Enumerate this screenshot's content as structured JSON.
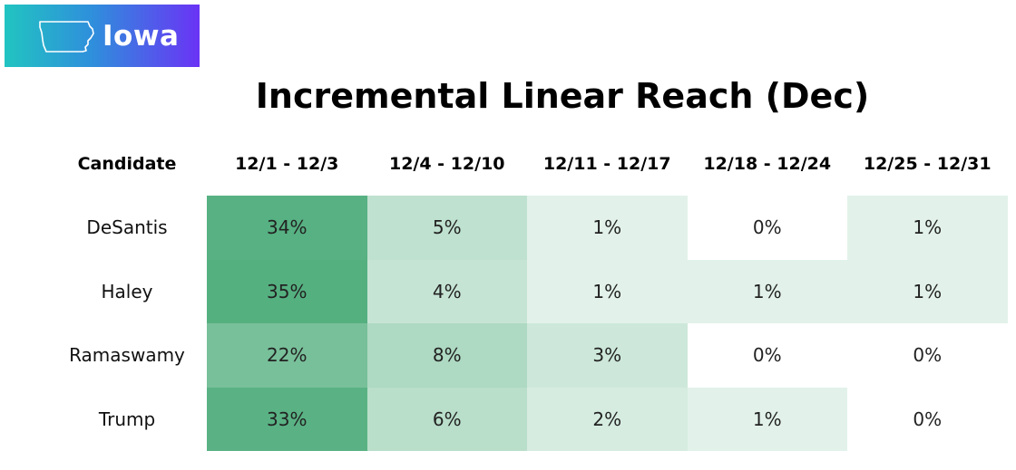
{
  "badge": {
    "label": "Iowa",
    "icon": "iowa-state-outline-icon",
    "gradient": [
      "#21c4c1",
      "#6a33f5"
    ]
  },
  "chart_data": {
    "type": "table",
    "title": "Incremental Linear Reach (Dec)",
    "columns": [
      "Candidate",
      "12/1 - 12/3",
      "12/4 - 12/10",
      "12/11 - 12/17",
      "12/18 - 12/24",
      "12/25 - 12/31"
    ],
    "rows": [
      {
        "candidate": "DeSantis",
        "values": [
          34,
          5,
          1,
          0,
          1
        ],
        "labels": [
          "34%",
          "5%",
          "1%",
          "0%",
          "1%"
        ]
      },
      {
        "candidate": "Haley",
        "values": [
          35,
          4,
          1,
          1,
          1
        ],
        "labels": [
          "35%",
          "4%",
          "1%",
          "1%",
          "1%"
        ]
      },
      {
        "candidate": "Ramaswamy",
        "values": [
          22,
          8,
          3,
          0,
          0
        ],
        "labels": [
          "22%",
          "8%",
          "3%",
          "0%",
          "0%"
        ]
      },
      {
        "candidate": "Trump",
        "values": [
          33,
          6,
          2,
          1,
          0
        ],
        "labels": [
          "33%",
          "6%",
          "2%",
          "1%",
          "0%"
        ]
      }
    ],
    "unit": "%",
    "color_scale": {
      "low": "#ffffff",
      "high": "#55b080",
      "max_value": 35
    }
  }
}
